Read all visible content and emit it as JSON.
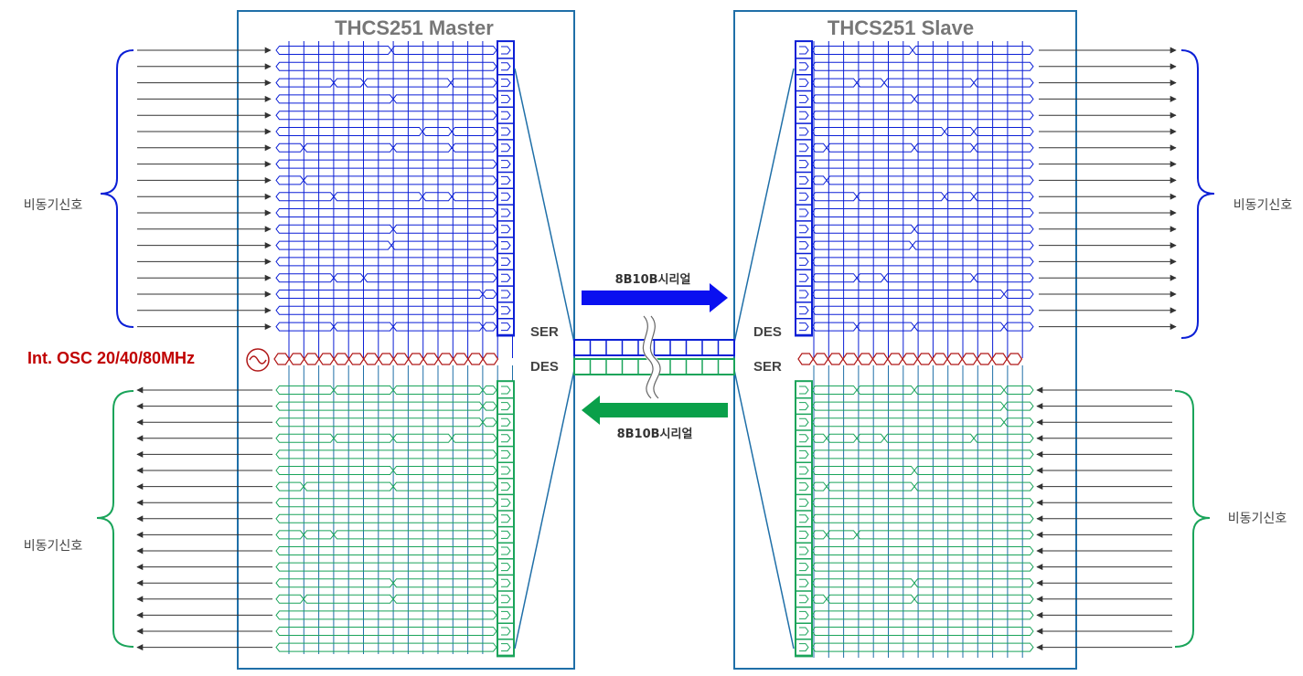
{
  "master": {
    "title": "THCS251 Master",
    "ser_label": "SER",
    "des_label": "DES"
  },
  "slave": {
    "title": "THCS251 Slave",
    "des_label": "DES",
    "ser_label": "SER"
  },
  "labels": {
    "async_top_left": "비동기신호",
    "async_bottom_left": "비동기신호",
    "async_top_right": "비동기신호",
    "async_bottom_right": "비동기신호"
  },
  "oscillator": {
    "label": "Int. OSC 20/40/80MHz"
  },
  "serial": {
    "forward_label": "8B10B시리얼",
    "reverse_label": "8B10B시리얼"
  },
  "colors": {
    "frame": "#1f6fa8",
    "tx_blue": "#0b1fd6",
    "rx_green": "#1aa45a",
    "signal_arrow": "#333333",
    "osc_red": "#b01818",
    "fwd_arrow": "#0a10f0",
    "rev_arrow": "#0aa04a",
    "title_gray": "#777777"
  },
  "signal_counts": {
    "top": 18,
    "bottom": 17
  }
}
